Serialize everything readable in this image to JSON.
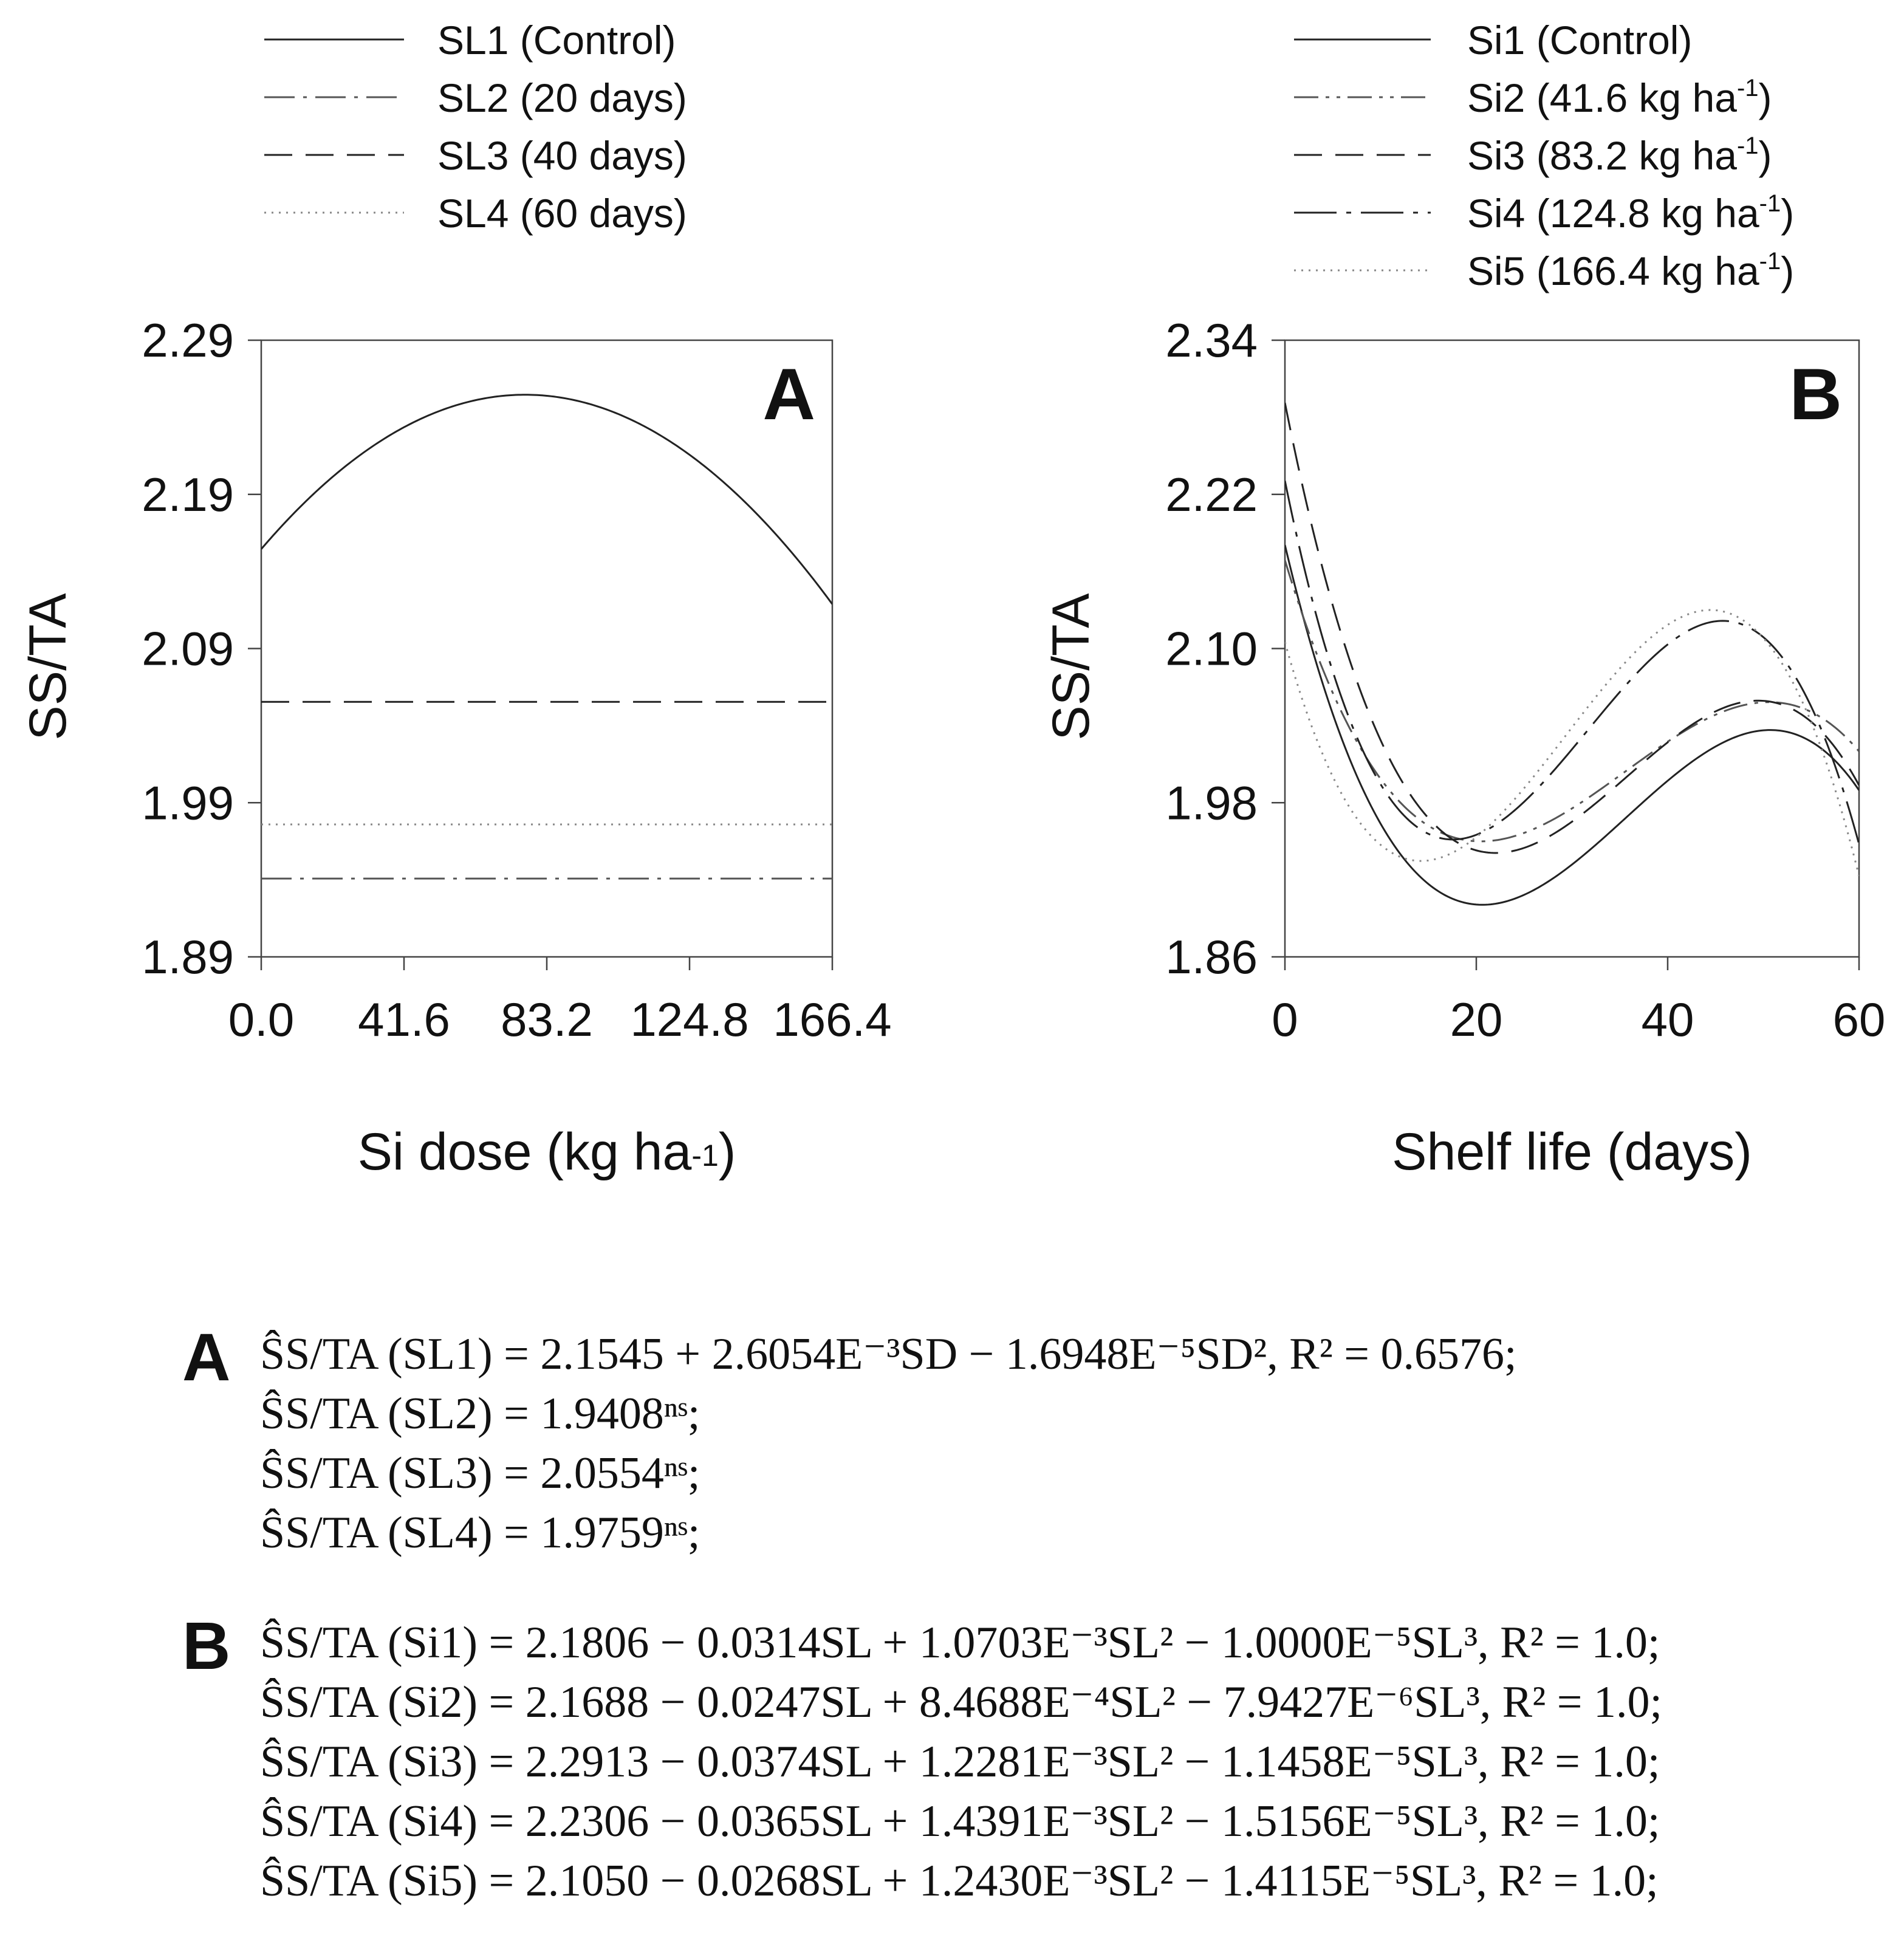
{
  "chart_data": [
    {
      "type": "line",
      "panel_label": "A",
      "xlabel_main": "Si dose (kg ha",
      "xlabel_sup": "-1",
      "xlabel_end": ")",
      "ylabel": "SS/TA",
      "xlim": [
        0,
        166.4
      ],
      "ylim": [
        1.89,
        2.29
      ],
      "xticks": [
        "0.0",
        "41.6",
        "83.2",
        "124.8",
        "166.4"
      ],
      "xtick_values": [
        0,
        41.6,
        83.2,
        124.8,
        166.4
      ],
      "yticks": [
        "1.89",
        "1.99",
        "2.09",
        "2.19",
        "2.29"
      ],
      "ytick_values": [
        1.89,
        1.99,
        2.09,
        2.19,
        2.29
      ],
      "legend": [
        {
          "label": "SL1 (Control)",
          "style": "solid",
          "color": "#222222"
        },
        {
          "label": "SL2 (20 days)",
          "style": "dashdot",
          "color": "#555555"
        },
        {
          "label": "SL3 (40 days)",
          "style": "dashed",
          "color": "#222222"
        },
        {
          "label": "SL4 (60 days)",
          "style": "dotted",
          "color": "#888888"
        }
      ],
      "series": [
        {
          "name": "SL1 (Control)",
          "model": "quadratic",
          "coefficients": [
            2.1545,
            0.0026054,
            -1.6948e-05
          ]
        },
        {
          "name": "SL2 (20 days)",
          "model": "constant",
          "coefficients": [
            1.9408
          ]
        },
        {
          "name": "SL3 (40 days)",
          "model": "constant",
          "coefficients": [
            2.0554
          ]
        },
        {
          "name": "SL4 (60 days)",
          "model": "constant",
          "coefficients": [
            1.9759
          ]
        }
      ]
    },
    {
      "type": "line",
      "panel_label": "B",
      "xlabel": "Shelf life (days)",
      "ylabel": "SS/TA",
      "xlim": [
        0,
        60
      ],
      "ylim": [
        1.86,
        2.34
      ],
      "xticks": [
        "0",
        "20",
        "40",
        "60"
      ],
      "xtick_values": [
        0,
        20,
        40,
        60
      ],
      "yticks": [
        "1.86",
        "1.98",
        "2.10",
        "2.22",
        "2.34"
      ],
      "ytick_values": [
        1.86,
        1.98,
        2.1,
        2.22,
        2.34
      ],
      "legend": [
        {
          "label": "Si1 (Control)",
          "style": "solid",
          "color": "#222222"
        },
        {
          "label": "Si2 (41.6 kg ha",
          "sup": "-1",
          "end": ")",
          "style": "dashdotdot",
          "color": "#555555"
        },
        {
          "label": "Si3 (83.2 kg ha",
          "sup": "-1",
          "end": ")",
          "style": "dashed",
          "color": "#222222"
        },
        {
          "label": "Si4 (124.8 kg ha",
          "sup": "-1",
          "end": ")",
          "style": "longdashdot",
          "color": "#222222"
        },
        {
          "label": "Si5 (166.4 kg ha",
          "sup": "-1",
          "end": ")",
          "style": "dotted",
          "color": "#888888"
        }
      ],
      "series": [
        {
          "name": "Si1 (Control)",
          "model": "cubic",
          "coefficients": [
            2.1806,
            -0.0314,
            0.0010703,
            -1e-05
          ]
        },
        {
          "name": "Si2 (41.6 kg ha-1)",
          "model": "cubic",
          "coefficients": [
            2.1688,
            -0.0247,
            0.00084688,
            -7.9427e-06
          ]
        },
        {
          "name": "Si3 (83.2 kg ha-1)",
          "model": "cubic",
          "coefficients": [
            2.2913,
            -0.0374,
            0.0012281,
            -1.1458e-05
          ]
        },
        {
          "name": "Si4 (124.8 kg ha-1)",
          "model": "cubic",
          "coefficients": [
            2.2306,
            -0.0365,
            0.0014391,
            -1.5156e-05
          ]
        },
        {
          "name": "Si5 (166.4 kg ha-1)",
          "model": "cubic",
          "coefficients": [
            2.105,
            -0.0268,
            0.001243,
            -1.4115e-05
          ]
        }
      ]
    }
  ],
  "equations": {
    "A": {
      "letter": "A",
      "lines": [
        "ŜS/TA (SL1) =  2.1545 + 2.6054E⁻³SD − 1.6948E⁻⁵SD², R² = 0.6576;",
        "ŜS/TA (SL2) = 1.9408ⁿˢ;",
        "ŜS/TA (SL3) = 2.0554ⁿˢ;",
        "ŜS/TA (SL4) = 1.9759ⁿˢ;"
      ]
    },
    "B": {
      "letter": "B",
      "lines": [
        "ŜS/TA (Si1) = 2.1806 − 0.0314SL + 1.0703E⁻³SL² − 1.0000E⁻⁵SL³, R² = 1.0;",
        "ŜS/TA (Si2) = 2.1688 − 0.0247SL + 8.4688E⁻⁴SL² − 7.9427E⁻⁶SL³, R² = 1.0;",
        "ŜS/TA (Si3) = 2.2913 − 0.0374SL + 1.2281E⁻³SL² − 1.1458E⁻⁵SL³, R² = 1.0;",
        "ŜS/TA (Si4) = 2.2306 − 0.0365SL + 1.4391E⁻³SL² − 1.5156E⁻⁵SL³, R² = 1.0;",
        "ŜS/TA (Si5) = 2.1050 − 0.0268SL + 1.2430E⁻³SL² − 1.4115E⁻⁵SL³, R² = 1.0;"
      ]
    }
  }
}
